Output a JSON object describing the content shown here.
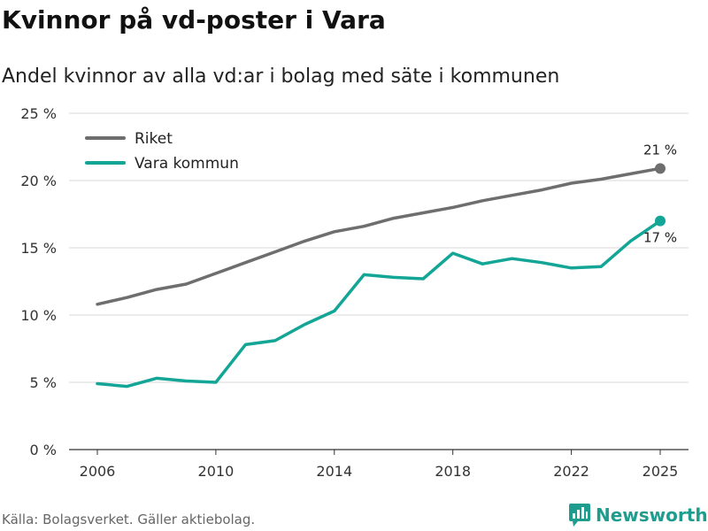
{
  "header": {
    "title": "Kvinnor på vd-poster i Vara",
    "subtitle": "Andel kvinnor av alla vd:ar i bolag med säte i kommunen"
  },
  "footer": {
    "source": "Källa: Bolagsverket. Gäller aktiebolag.",
    "brand": "Newsworthy",
    "brand_icon": "bar-chart-logo-icon",
    "brand_color": "#1e9d8f"
  },
  "chart_data": {
    "type": "line",
    "x": [
      2006,
      2007,
      2008,
      2009,
      2010,
      2011,
      2012,
      2013,
      2014,
      2015,
      2016,
      2017,
      2018,
      2019,
      2020,
      2021,
      2022,
      2023,
      2024,
      2025
    ],
    "xticks": [
      2006,
      2010,
      2014,
      2018,
      2022,
      2025
    ],
    "yticks": [
      0,
      5,
      10,
      15,
      20,
      25
    ],
    "ytick_labels": [
      "0 %",
      "5 %",
      "10 %",
      "15 %",
      "20 %",
      "25 %"
    ],
    "xlim": [
      2006,
      2025
    ],
    "ylim": [
      0,
      25
    ],
    "grid": true,
    "legend": "top-left",
    "series": [
      {
        "name": "Riket",
        "color": "#6e6e6e",
        "end_label": "21 %",
        "values": [
          10.8,
          11.3,
          11.9,
          12.3,
          13.1,
          13.9,
          14.7,
          15.5,
          16.2,
          16.6,
          17.2,
          17.6,
          18.0,
          18.5,
          18.9,
          19.3,
          19.8,
          20.1,
          20.5,
          20.9
        ]
      },
      {
        "name": "Vara kommun",
        "color": "#13a595",
        "end_label": "17 %",
        "values": [
          4.9,
          4.7,
          5.3,
          5.1,
          5.0,
          7.8,
          8.1,
          9.3,
          10.3,
          13.0,
          12.8,
          12.7,
          14.6,
          13.8,
          14.2,
          13.9,
          13.5,
          13.6,
          15.5,
          17.0
        ]
      }
    ]
  }
}
